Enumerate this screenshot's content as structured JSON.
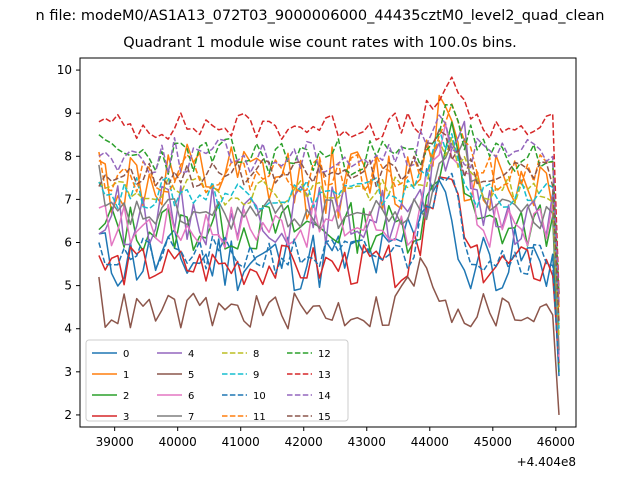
{
  "page_title": "n file: modeM0/AS1A13_072T03_9000006000_44435cztM0_level2_quad_clean",
  "chart_data": {
    "type": "line",
    "title": "Quadrant 1 module wise count rates with 100.0s bins.",
    "xlabel": "",
    "ylabel": "",
    "x_offset_label": "+4.404e8",
    "xlim": [
      38450,
      46320
    ],
    "ylim": [
      1.72,
      10.28
    ],
    "xticks": [
      39000,
      40000,
      41000,
      42000,
      43000,
      44000,
      45000,
      46000
    ],
    "xtick_labels": [
      "39000",
      "40000",
      "41000",
      "42000",
      "43000",
      "44000",
      "45000",
      "46000"
    ],
    "yticks": [
      2,
      3,
      4,
      5,
      6,
      7,
      8,
      9,
      10
    ],
    "ytick_labels": [
      "2",
      "3",
      "4",
      "5",
      "6",
      "7",
      "8",
      "9",
      "10"
    ],
    "grid": false,
    "legend": {
      "placement": "lower-left",
      "columns": 4
    },
    "x_start": 38750,
    "x_end": 46050,
    "x_step": 100,
    "series": [
      {
        "name": "0",
        "color": "#1f77b4",
        "dash": false,
        "y_start": 6.2,
        "y_end": 2.9,
        "low": 4.9,
        "high": 6.3,
        "peak_at": 44000,
        "peak": 8.0,
        "seed": 11
      },
      {
        "name": "1",
        "color": "#ff7f0e",
        "dash": false,
        "y_start": 7.9,
        "y_end": 4.2,
        "low": 6.6,
        "high": 8.2,
        "peak_at": 44100,
        "peak": 9.2,
        "seed": 12
      },
      {
        "name": "2",
        "color": "#2ca02c",
        "dash": false,
        "y_start": 6.3,
        "y_end": 3.0,
        "low": 5.8,
        "high": 6.9,
        "peak_at": 44300,
        "peak": 8.7,
        "seed": 13
      },
      {
        "name": "3",
        "color": "#d62728",
        "dash": false,
        "y_start": 5.7,
        "y_end": 3.2,
        "low": 5.0,
        "high": 5.9,
        "peak_at": 44200,
        "peak": 8.5,
        "seed": 14
      },
      {
        "name": "4",
        "color": "#9467bd",
        "dash": false,
        "y_start": 6.2,
        "y_end": 3.4,
        "low": 6.0,
        "high": 7.3,
        "peak_at": 44400,
        "peak": 9.0,
        "seed": 15
      },
      {
        "name": "5",
        "color": "#8c564b",
        "dash": false,
        "y_start": 5.2,
        "y_end": 2.0,
        "low": 4.0,
        "high": 4.8,
        "peak_at": 43900,
        "peak": 5.6,
        "seed": 16
      },
      {
        "name": "6",
        "color": "#e377c2",
        "dash": false,
        "y_start": 6.8,
        "y_end": 3.3,
        "low": 5.9,
        "high": 6.9,
        "peak_at": 44300,
        "peak": 8.9,
        "seed": 17
      },
      {
        "name": "7",
        "color": "#7f7f7f",
        "dash": false,
        "y_start": 7.8,
        "y_end": 3.5,
        "low": 6.3,
        "high": 7.0,
        "peak_at": 44400,
        "peak": 9.1,
        "seed": 18
      },
      {
        "name": "8",
        "color": "#bcbd22",
        "dash": true,
        "y_start": 7.4,
        "y_end": 3.8,
        "low": 6.9,
        "high": 7.5,
        "peak_at": 44300,
        "peak": 8.6,
        "seed": 19
      },
      {
        "name": "9",
        "color": "#17becf",
        "dash": true,
        "y_start": 7.4,
        "y_end": 4.0,
        "low": 6.8,
        "high": 7.5,
        "peak_at": 44200,
        "peak": 8.8,
        "seed": 20
      },
      {
        "name": "10",
        "color": "#1f77b4",
        "dash": true,
        "y_start": 6.0,
        "y_end": 3.0,
        "low": 5.3,
        "high": 6.1,
        "peak_at": 44200,
        "peak": 8.3,
        "seed": 21
      },
      {
        "name": "11",
        "color": "#ff7f0e",
        "dash": true,
        "y_start": 8.1,
        "y_end": 4.5,
        "low": 7.2,
        "high": 8.0,
        "peak_at": 44300,
        "peak": 9.3,
        "seed": 22
      },
      {
        "name": "12",
        "color": "#2ca02c",
        "dash": true,
        "y_start": 8.5,
        "y_end": 4.8,
        "low": 7.6,
        "high": 8.4,
        "peak_at": 44300,
        "peak": 9.1,
        "seed": 23
      },
      {
        "name": "13",
        "color": "#d62728",
        "dash": true,
        "y_start": 8.8,
        "y_end": 4.8,
        "low": 8.4,
        "high": 9.0,
        "peak_at": 44300,
        "peak": 9.8,
        "seed": 24
      },
      {
        "name": "14",
        "color": "#9467bd",
        "dash": true,
        "y_start": 8.0,
        "y_end": 4.6,
        "low": 7.6,
        "high": 8.4,
        "peak_at": 44200,
        "peak": 8.8,
        "seed": 25
      },
      {
        "name": "15",
        "color": "#8c564b",
        "dash": true,
        "y_start": 7.3,
        "y_end": 4.1,
        "low": 7.3,
        "high": 7.9,
        "peak_at": 44200,
        "peak": 8.7,
        "seed": 26
      }
    ]
  }
}
